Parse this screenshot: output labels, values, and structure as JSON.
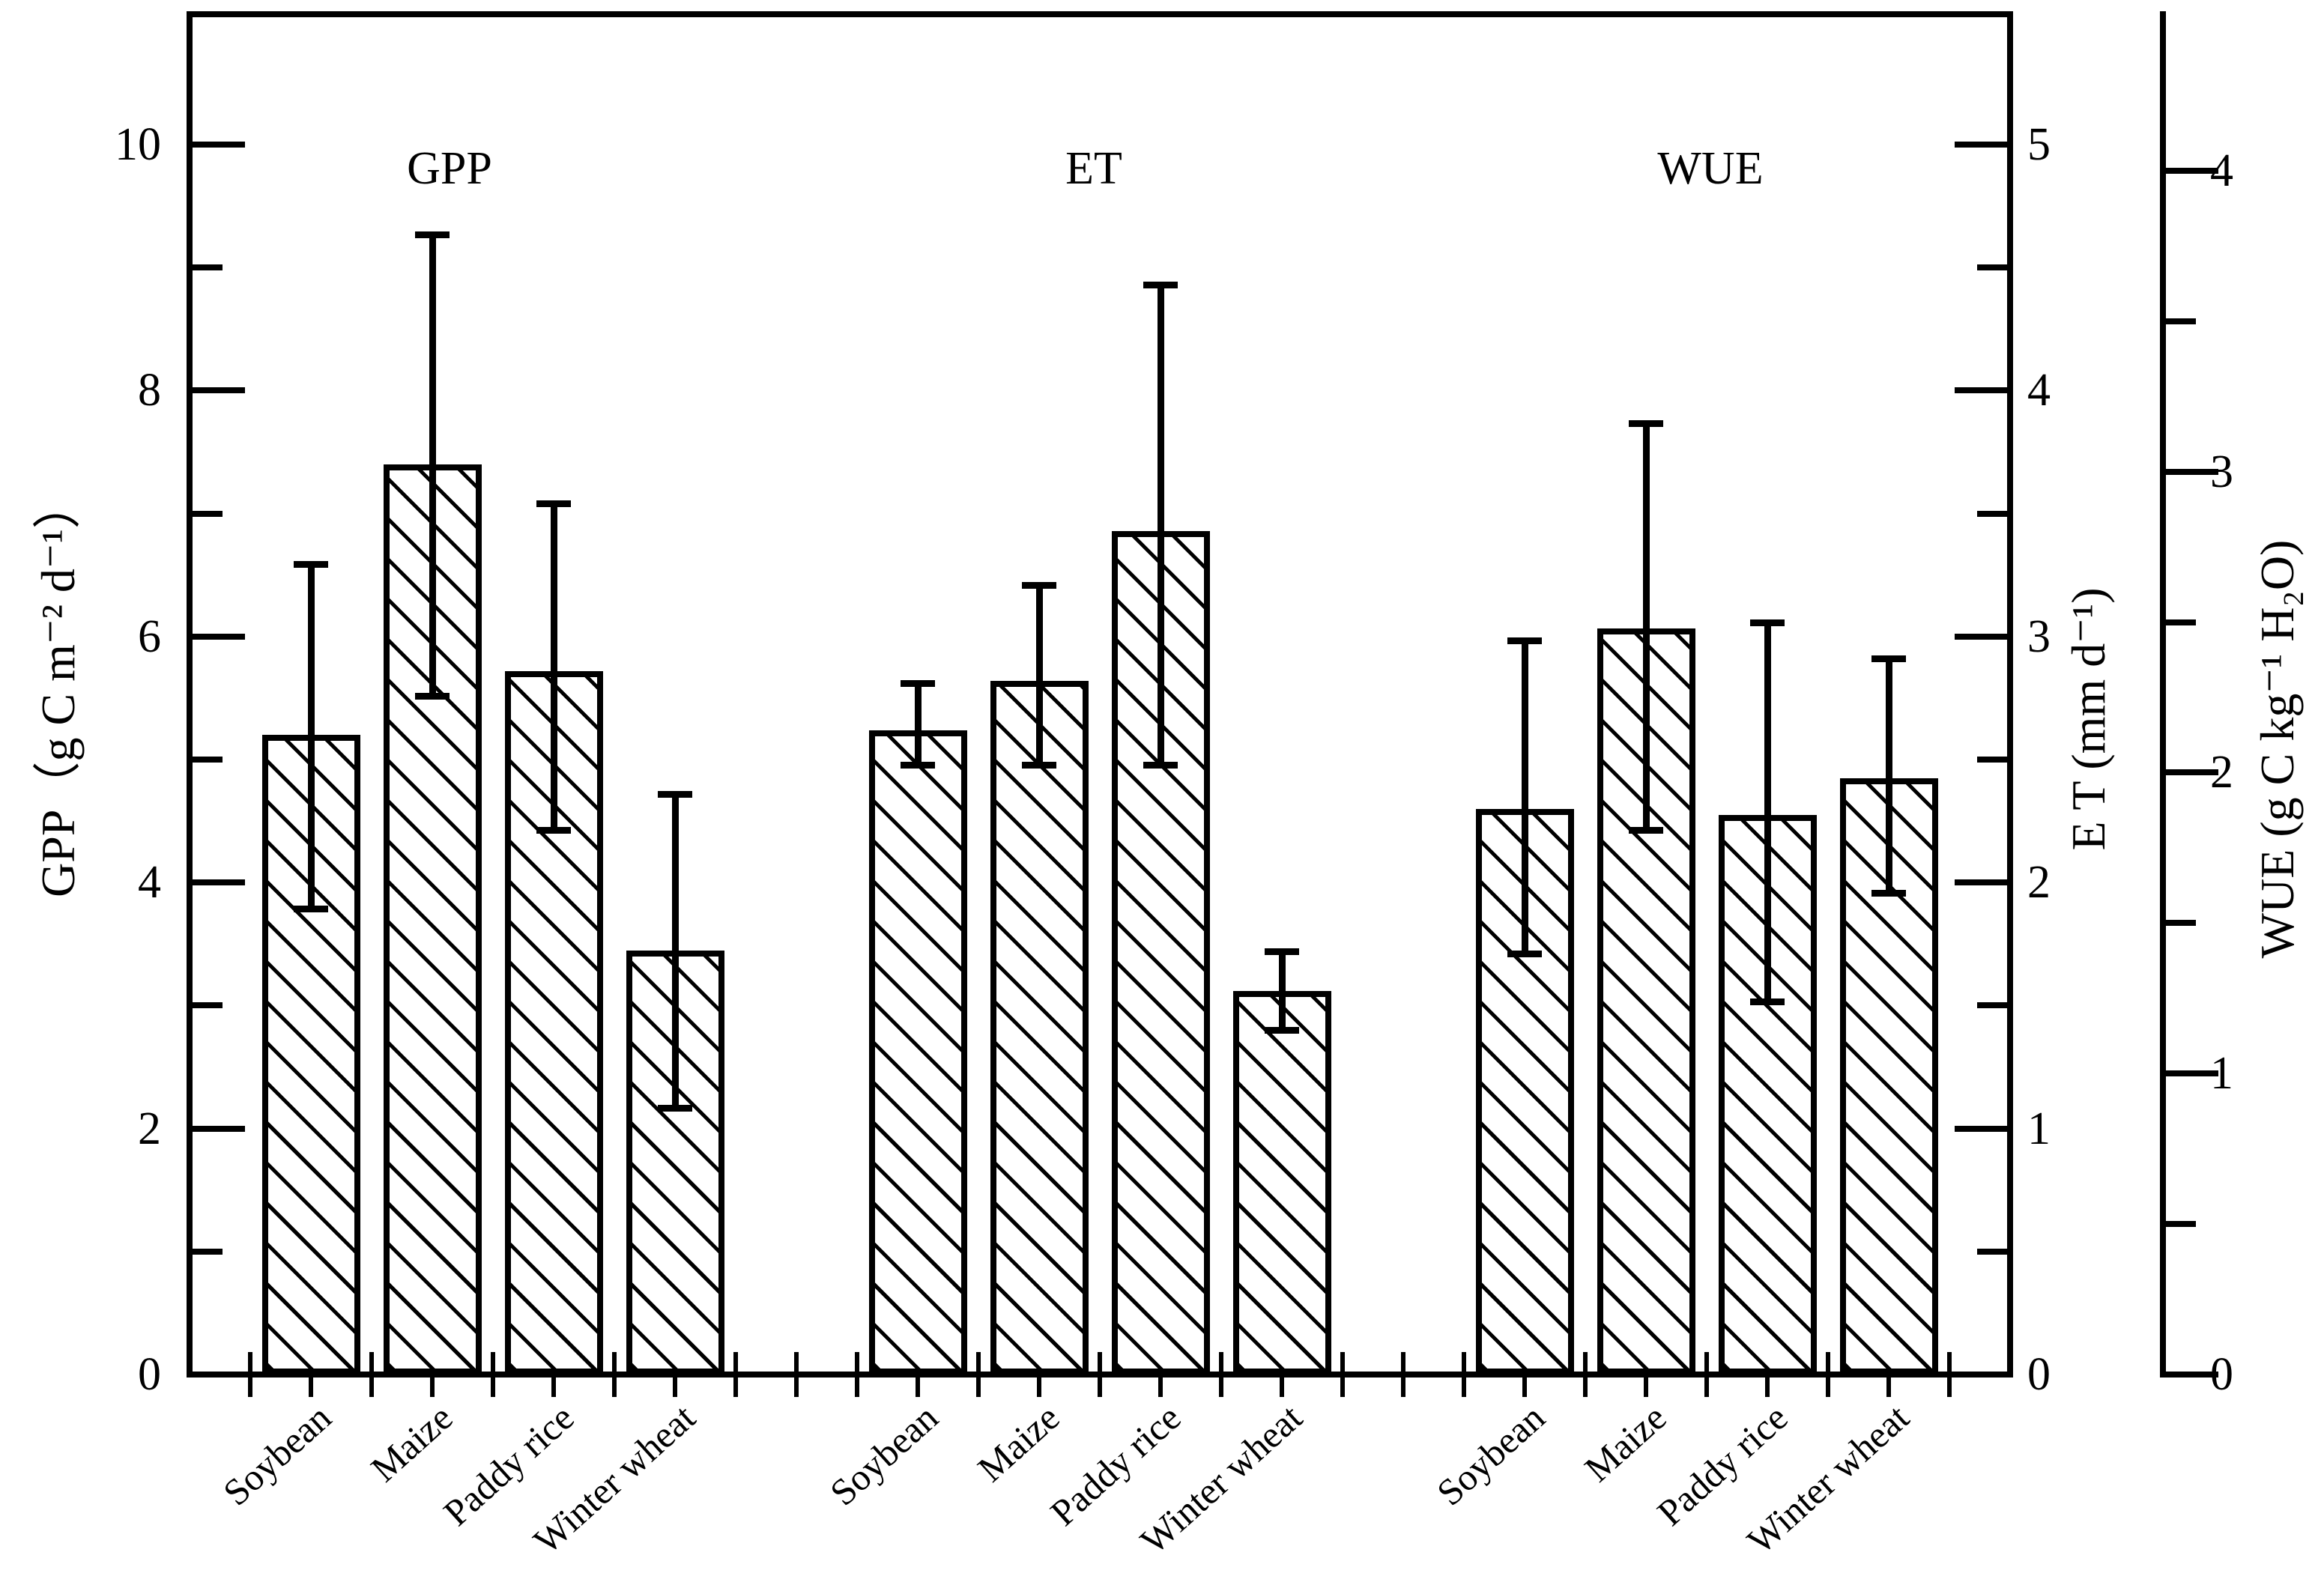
{
  "page": {
    "background": "#ffffff",
    "foreground": "#000000"
  },
  "chart_data": {
    "type": "bar",
    "title": "",
    "layout_hint": "three bar groups sharing one category axis; each group read on its own y-axis; error bars; hatched white bars; serif fonts; no gridlines; no legend",
    "bar_style": {
      "fill": "#ffffff",
      "stroke": "#000000",
      "hatch": "forward-diagonal"
    },
    "categories": [
      "Soybean",
      "Maize",
      "Paddy rice",
      "Winter wheat"
    ],
    "groups": [
      {
        "title": "GPP",
        "axis": "left",
        "categories": [
          "Soybean",
          "Maize",
          "Paddy rice",
          "Winter wheat"
        ],
        "values": [
          5.2,
          7.4,
          5.72,
          3.45
        ],
        "err_high": [
          6.59,
          9.27,
          7.08,
          4.72
        ],
        "err_low": [
          3.79,
          5.52,
          4.43,
          2.17
        ]
      },
      {
        "title": "ET",
        "axis": "right_et",
        "categories": [
          "Soybean",
          "Maize",
          "Paddy rice",
          "Winter wheat"
        ],
        "values": [
          2.62,
          2.82,
          3.43,
          1.56
        ],
        "err_high": [
          2.81,
          3.21,
          4.43,
          1.72
        ],
        "err_low": [
          2.48,
          2.48,
          2.48,
          1.4
        ]
      },
      {
        "title": "WUE",
        "axis": "right_wue",
        "categories": [
          "Soybean",
          "Maize",
          "Paddy rice",
          "Winter wheat"
        ],
        "values": [
          1.88,
          2.48,
          1.86,
          1.98
        ],
        "err_high": [
          2.44,
          3.16,
          2.5,
          2.38
        ],
        "err_low": [
          1.4,
          1.81,
          1.24,
          1.6
        ]
      }
    ],
    "axes": {
      "left": {
        "label": "GPP（g C m⁻² d⁻¹）",
        "lim": [
          0,
          11.06
        ],
        "major": [
          0,
          2,
          4,
          6,
          8,
          10
        ],
        "minor": [
          1,
          3,
          5,
          7,
          9
        ]
      },
      "right_et": {
        "label": "E T (mm d⁻¹)",
        "lim": [
          0,
          5.53
        ],
        "major": [
          0,
          1,
          2,
          3,
          4,
          5
        ],
        "minor": [
          0.5,
          1.5,
          2.5,
          3.5,
          4.5
        ]
      },
      "right_wue": {
        "label": "WUE (g C kg⁻¹ H₂O)",
        "lim": [
          0,
          4.52
        ],
        "major": [
          0,
          1,
          2,
          3,
          4
        ],
        "minor": [
          0.5,
          1.5,
          2.5,
          3.5
        ]
      }
    }
  }
}
